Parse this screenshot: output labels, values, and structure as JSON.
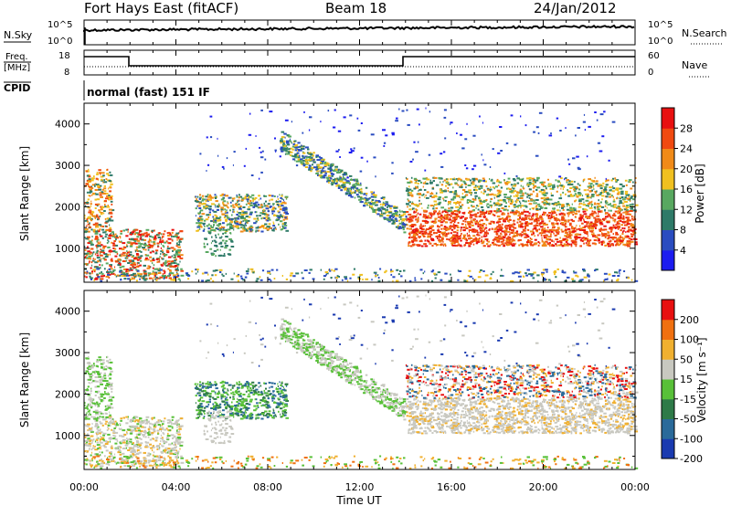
{
  "header": {
    "title": "Fort Hays East (fitACF)",
    "beam": "Beam 18",
    "date": "24/Jan/2012"
  },
  "panels": {
    "nsky": {
      "label": "N.Sky",
      "right_label": "N.Search",
      "tick_top": "10^5",
      "tick_bottom": "10^0",
      "right_tick_top": "10^5",
      "right_tick_bottom": "10^0"
    },
    "freq": {
      "label_line1": "Freq.",
      "label_line2": "[MHz]",
      "right_label": "Nave",
      "tick_top": "18",
      "tick_bottom": "8",
      "right_tick_top": "60",
      "right_tick_bottom": "0"
    },
    "cpid": {
      "label": "CPID",
      "value": "normal (fast) 151 IF"
    }
  },
  "chart_data": [
    {
      "type": "heatmap",
      "title": "",
      "ylabel": "Slant Range [km]",
      "ylim": [
        180,
        4500
      ],
      "yticks": [
        "1000",
        "2000",
        "3000",
        "4000"
      ],
      "colorbar": {
        "label": "Power [dB]",
        "ticks": [
          "4",
          "8",
          "12",
          "16",
          "20",
          "24",
          "28"
        ],
        "colors": [
          "#1c1cf0",
          "#2a4cc0",
          "#2e7a68",
          "#58a860",
          "#f0c020",
          "#f08a18",
          "#f04a10",
          "#e81010"
        ]
      }
    },
    {
      "type": "heatmap",
      "title": "",
      "ylabel": "Slant Range [km]",
      "xlabel": "Time UT",
      "ylim": [
        180,
        4500
      ],
      "yticks": [
        "1000",
        "2000",
        "3000",
        "4000"
      ],
      "xticks": [
        "00:00",
        "04:00",
        "08:00",
        "12:00",
        "16:00",
        "20:00",
        "00:00"
      ],
      "colorbar": {
        "label": "Velocity [m s⁻¹]",
        "ticks": [
          "200",
          "100",
          "50",
          "15",
          "-15",
          "-50",
          "-100",
          "-200"
        ],
        "colors": [
          "#1a3ab0",
          "#2a6a9a",
          "#2e7a48",
          "#58c038",
          "#c8c8c0",
          "#f0b030",
          "#f07010",
          "#e81010"
        ]
      }
    }
  ]
}
